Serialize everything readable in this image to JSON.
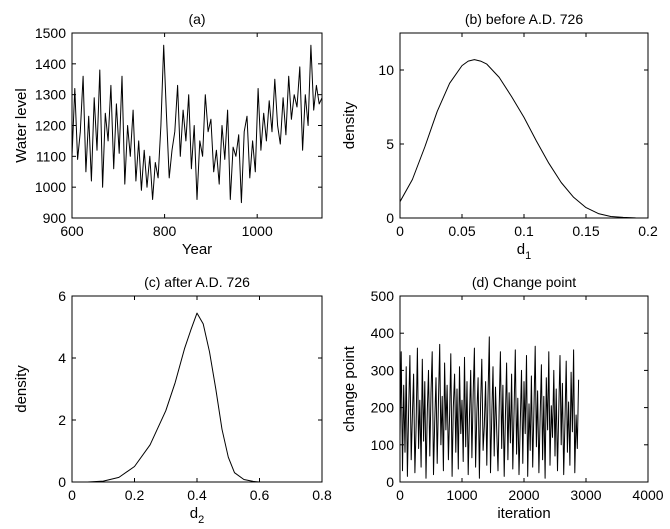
{
  "chart_data": [
    {
      "id": "a",
      "type": "line",
      "title": "(a)",
      "xlabel": "Year",
      "ylabel": "Water level",
      "xlim": [
        600,
        1140
      ],
      "ylim": [
        900,
        1500
      ],
      "xticks": [
        600,
        800,
        1000
      ],
      "yticks": [
        900,
        1000,
        1100,
        1200,
        1300,
        1400,
        1500
      ],
      "grid": false,
      "legend": "none",
      "series": [
        {
          "color": "#000000",
          "x": [
            600,
            606,
            612,
            618,
            624,
            630,
            636,
            642,
            648,
            654,
            660,
            666,
            672,
            678,
            684,
            690,
            696,
            702,
            708,
            714,
            720,
            726,
            732,
            738,
            744,
            750,
            756,
            762,
            768,
            774,
            780,
            786,
            792,
            798,
            804,
            810,
            816,
            822,
            828,
            834,
            840,
            846,
            852,
            858,
            864,
            870,
            876,
            882,
            888,
            894,
            900,
            906,
            912,
            918,
            924,
            930,
            936,
            942,
            948,
            954,
            960,
            966,
            972,
            978,
            984,
            990,
            996,
            1002,
            1008,
            1014,
            1020,
            1026,
            1032,
            1038,
            1044,
            1050,
            1056,
            1062,
            1068,
            1074,
            1080,
            1086,
            1092,
            1098,
            1104,
            1110,
            1116,
            1122,
            1128,
            1134,
            1140
          ],
          "y": [
            1100,
            1320,
            1090,
            1180,
            1360,
            1050,
            1230,
            1020,
            1290,
            1120,
            1380,
            1000,
            1240,
            1150,
            1330,
            1060,
            1270,
            1110,
            1360,
            1010,
            1200,
            1100,
            1250,
            1020,
            1150,
            990,
            1120,
            1000,
            1100,
            960,
            1080,
            1030,
            1200,
            1460,
            1240,
            1030,
            1120,
            1180,
            1330,
            1100,
            1250,
            1150,
            1300,
            1060,
            1200,
            960,
            1150,
            1100,
            1300,
            1180,
            1220,
            1050,
            1120,
            1010,
            1200,
            1090,
            1250,
            960,
            1130,
            1100,
            1170,
            950,
            1180,
            1230,
            1030,
            1150,
            1050,
            1320,
            1120,
            1240,
            1150,
            1280,
            1180,
            1350,
            1200,
            1140,
            1290,
            1170,
            1360,
            1220,
            1300,
            1260,
            1390,
            1120,
            1300,
            1200,
            1460,
            1250,
            1330,
            1270,
            1290
          ]
        }
      ]
    },
    {
      "id": "b",
      "type": "line",
      "title": "(b) before A.D. 726",
      "xlabel": "d",
      "xlabel_sub": "1",
      "ylabel": "density",
      "xlim": [
        0,
        0.2
      ],
      "ylim": [
        0,
        12.5
      ],
      "xticks": [
        0,
        0.05,
        0.1,
        0.15,
        0.2
      ],
      "yticks": [
        0,
        5,
        10
      ],
      "grid": false,
      "legend": "none",
      "series": [
        {
          "color": "#000000",
          "x": [
            0,
            0.01,
            0.02,
            0.03,
            0.04,
            0.05,
            0.055,
            0.06,
            0.065,
            0.07,
            0.08,
            0.09,
            0.1,
            0.11,
            0.12,
            0.13,
            0.14,
            0.15,
            0.16,
            0.17,
            0.18,
            0.19,
            0.2
          ],
          "y": [
            1.1,
            2.6,
            4.8,
            7.2,
            9.1,
            10.3,
            10.6,
            10.7,
            10.6,
            10.4,
            9.5,
            8.2,
            6.8,
            5.2,
            3.7,
            2.4,
            1.4,
            0.7,
            0.3,
            0.1,
            0.04,
            0.01,
            0
          ]
        }
      ]
    },
    {
      "id": "c",
      "type": "line",
      "title": "(c) after A.D. 726",
      "xlabel": "d",
      "xlabel_sub": "2",
      "ylabel": "density",
      "xlim": [
        0,
        0.8
      ],
      "ylim": [
        0,
        6
      ],
      "xticks": [
        0,
        0.2,
        0.4,
        0.6,
        0.8
      ],
      "yticks": [
        0,
        2,
        4,
        6
      ],
      "grid": false,
      "legend": "none",
      "series": [
        {
          "color": "#000000",
          "x": [
            0.05,
            0.1,
            0.15,
            0.2,
            0.25,
            0.3,
            0.33,
            0.36,
            0.38,
            0.4,
            0.42,
            0.44,
            0.46,
            0.48,
            0.5,
            0.52,
            0.55,
            0.58,
            0.6
          ],
          "y": [
            0,
            0.03,
            0.15,
            0.5,
            1.2,
            2.3,
            3.2,
            4.3,
            4.9,
            5.45,
            5.1,
            4.2,
            3.0,
            1.7,
            0.8,
            0.3,
            0.08,
            0.02,
            0
          ]
        }
      ]
    },
    {
      "id": "d",
      "type": "line",
      "title": "(d) Change point",
      "xlabel": "iteration",
      "ylabel": "change point",
      "xlim": [
        0,
        4000
      ],
      "ylim": [
        0,
        500
      ],
      "xticks": [
        0,
        1000,
        2000,
        3000,
        4000
      ],
      "yticks": [
        0,
        100,
        200,
        300,
        400,
        500
      ],
      "grid": false,
      "legend": "none",
      "series": [
        {
          "color": "#000000",
          "x_start": 0,
          "x_step": 20,
          "y": [
            120,
            350,
            30,
            260,
            80,
            310,
            15,
            200,
            340,
            60,
            180,
            290,
            25,
            150,
            360,
            90,
            220,
            40,
            330,
            110,
            270,
            10,
            190,
            300,
            70,
            240,
            350,
            20,
            160,
            280,
            50,
            210,
            370,
            100,
            230,
            30,
            320,
            140,
            260,
            60,
            180,
            345,
            15,
            200,
            290,
            80,
            250,
            35,
            310,
            130,
            220,
            55,
            335,
            95,
            270,
            20,
            170,
            300,
            65,
            240,
            360,
            40,
            190,
            280,
            10,
            210,
            330,
            85,
            150,
            270,
            45,
            230,
            390,
            25,
            180,
            310,
            70,
            255,
            140,
            30,
            200,
            350,
            90,
            260,
            15,
            175,
            320,
            60,
            240,
            105,
            290,
            35,
            195,
            355,
            75,
            225,
            20,
            160,
            300,
            50,
            270,
            130,
            340,
            15,
            210,
            85,
            285,
            40,
            190,
            365,
            95,
            245,
            25,
            170,
            315,
            60,
            230,
            10,
            280,
            140,
            350,
            45,
            205,
            120,
            300,
            70,
            250,
            30,
            185,
            340,
            100,
            265,
            20,
            155,
            325,
            80,
            215,
            45,
            295,
            135,
            355,
            25,
            180,
            90,
            275
          ]
        }
      ]
    }
  ]
}
